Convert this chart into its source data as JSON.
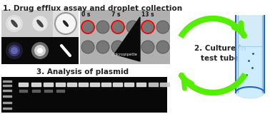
{
  "title1": "1. Drug efflux assay and droplet collection",
  "title2": "2. Culture in\ntest tube",
  "title3": "3. Analysis of plasmid",
  "arrow_color": "#55ee00",
  "bg_color": "#ffffff",
  "text_color": "#222222",
  "time_labels": [
    "0 s",
    "7 s",
    "13 s"
  ],
  "micropipette_label": "micropipette",
  "fig_width": 3.78,
  "fig_height": 1.6,
  "dpi": 100
}
